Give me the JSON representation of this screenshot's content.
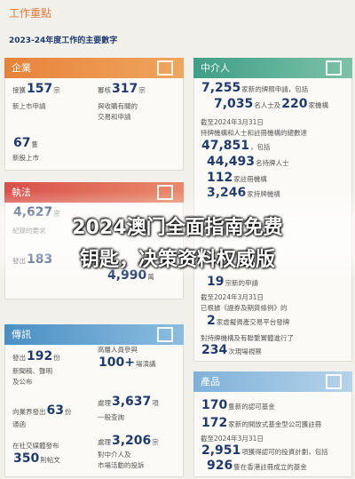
{
  "header": {
    "title": "工作重點",
    "subtitle": "2023-24年度工作的主要數字"
  },
  "overlay": {
    "line1": "2024澳门全面指南免费",
    "line2": "钥匙，决策资料权威版"
  },
  "sections": [
    {
      "title": "企業",
      "lines": [
        [
          {
            "text": "接獲"
          },
          {
            "number": "157"
          },
          {
            "text": "宗"
          }
        ],
        [
          {
            "text": "新上市申請"
          }
        ],
        [
          {
            "text": "審核"
          },
          {
            "number": "317"
          },
          {
            "text": "宗"
          }
        ],
        [
          {
            "text": "與收購有關的"
          }
        ],
        [
          {
            "text": "交易和申請"
          }
        ],
        [
          {
            "number": "67"
          },
          {
            "text": "隻"
          }
        ],
        [
          {
            "text": "新股上市"
          }
        ]
      ]
    },
    {
      "title": "執法",
      "lines": [
        [
          {
            "number": "4,627"
          },
          {
            "text": "宗"
          }
        ],
        [
          {
            "text": "紀錄的要求"
          }
        ],
        [
          {
            "text": "發出"
          },
          {
            "number": "183"
          }
        ],
        [
          {
            "number": "4,990"
          },
          {
            "text": "萬"
          }
        ]
      ]
    },
    {
      "title": "傳訊",
      "lines": [
        [
          {
            "text": "發出"
          },
          {
            "number": "192"
          },
          {
            "text": "份"
          }
        ],
        [
          {
            "text": "新聞稿、聲明"
          }
        ],
        [
          {
            "text": "及公布"
          }
        ],
        [
          {
            "text": "高層人員參與"
          }
        ],
        [
          {
            "number": "100+"
          },
          {
            "text": "場演講"
          }
        ],
        [
          {
            "text": "向業界發出"
          },
          {
            "number": "63"
          },
          {
            "text": "份"
          }
        ],
        [
          {
            "text": "通函"
          }
        ],
        [
          {
            "text": "處理"
          },
          {
            "number": "3,637"
          },
          {
            "text": "項"
          }
        ],
        [
          {
            "text": "一般查詢"
          }
        ],
        [
          {
            "text": "在社交媒體發布"
          }
        ],
        [
          {
            "number": "350"
          },
          {
            "text": "則帖文"
          }
        ],
        [
          {
            "text": "處理"
          },
          {
            "number": "3,206"
          },
          {
            "text": "宗"
          }
        ],
        [
          {
            "text": "對中介人及"
          }
        ],
        [
          {
            "text": "市場活動的投訴"
          }
        ]
      ]
    },
    {
      "title": "中介人",
      "lines": [
        [
          {
            "number": "7,255"
          },
          {
            "text": "家新的牌照申請，包括"
          }
        ],
        [
          {
            "number": "7,035"
          },
          {
            "text": "名人士及"
          },
          {
            "number": "220"
          },
          {
            "text": "家機構"
          }
        ],
        [
          {
            "text": "截至2024年3月31日"
          }
        ],
        [
          {
            "text": "持牌機構和人士和註冊機構的總數達"
          }
        ],
        [
          {
            "number": "47,851"
          },
          {
            "text": "，包括"
          }
        ],
        [
          {
            "number": "44,493"
          },
          {
            "text": "名持牌人士"
          }
        ],
        [
          {
            "number": "112"
          },
          {
            "text": "家註冊機構"
          }
        ],
        [
          {
            "number": "3,246"
          },
          {
            "text": "家持牌機構"
          }
        ],
        [
          {
            "number": "19"
          },
          {
            "text": "宗新的申請"
          }
        ],
        [
          {
            "text": "截至2024年3月31日"
          }
        ],
        [
          {
            "text": "已根據《證券及期貨條例》的"
          }
        ],
        [
          {
            "number": "2"
          },
          {
            "text": "家虛擬資產交易平台發牌"
          }
        ],
        [
          {
            "text": "對持牌機構及有聯繫實體進行了"
          }
        ],
        [
          {
            "number": "234"
          },
          {
            "text": "次現場視察"
          }
        ]
      ]
    },
    {
      "title": "產品",
      "lines": [
        [
          {
            "number": "170"
          },
          {
            "text": "隻新的認可基金"
          }
        ],
        [
          {
            "number": "172"
          },
          {
            "text": "家新的開放式基金型公司獲註冊"
          }
        ],
        [
          {
            "text": "截至2024年3月31日"
          }
        ],
        [
          {
            "number": "2,951"
          },
          {
            "text": "項獲得認可的投資計劃，包括"
          }
        ],
        [
          {
            "number": "926"
          },
          {
            "text": "隻在香港註冊成立的基金"
          }
        ]
      ]
    }
  ]
}
